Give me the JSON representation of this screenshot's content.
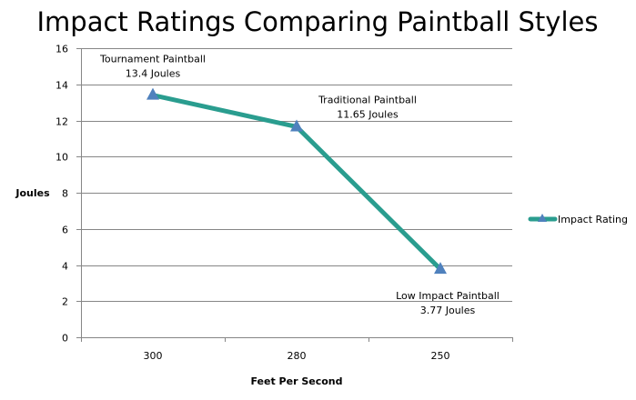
{
  "chart_data": {
    "type": "line",
    "title": "Impact Ratings Comparing Paintball Styles",
    "xlabel": "Feet Per Second",
    "ylabel": "Joules",
    "categories": [
      "300",
      "280",
      "250"
    ],
    "series": [
      {
        "name": "Impact Rating",
        "values": [
          13.4,
          11.65,
          3.77
        ],
        "color": "#2a9d8f",
        "marker_color": "#4f81bd",
        "marker": "triangle",
        "data_labels": [
          [
            "Tournament Paintball",
            "13.4 Joules"
          ],
          [
            "Traditional Paintball",
            "11.65 Joules"
          ],
          [
            "Low Impact  Paintball",
            "3.77 Joules"
          ]
        ]
      }
    ],
    "ylim": [
      0,
      16
    ],
    "yticks": [
      "0",
      "2",
      "4",
      "6",
      "8",
      "10",
      "12",
      "14",
      "16"
    ],
    "grid": true,
    "legend": "right"
  }
}
